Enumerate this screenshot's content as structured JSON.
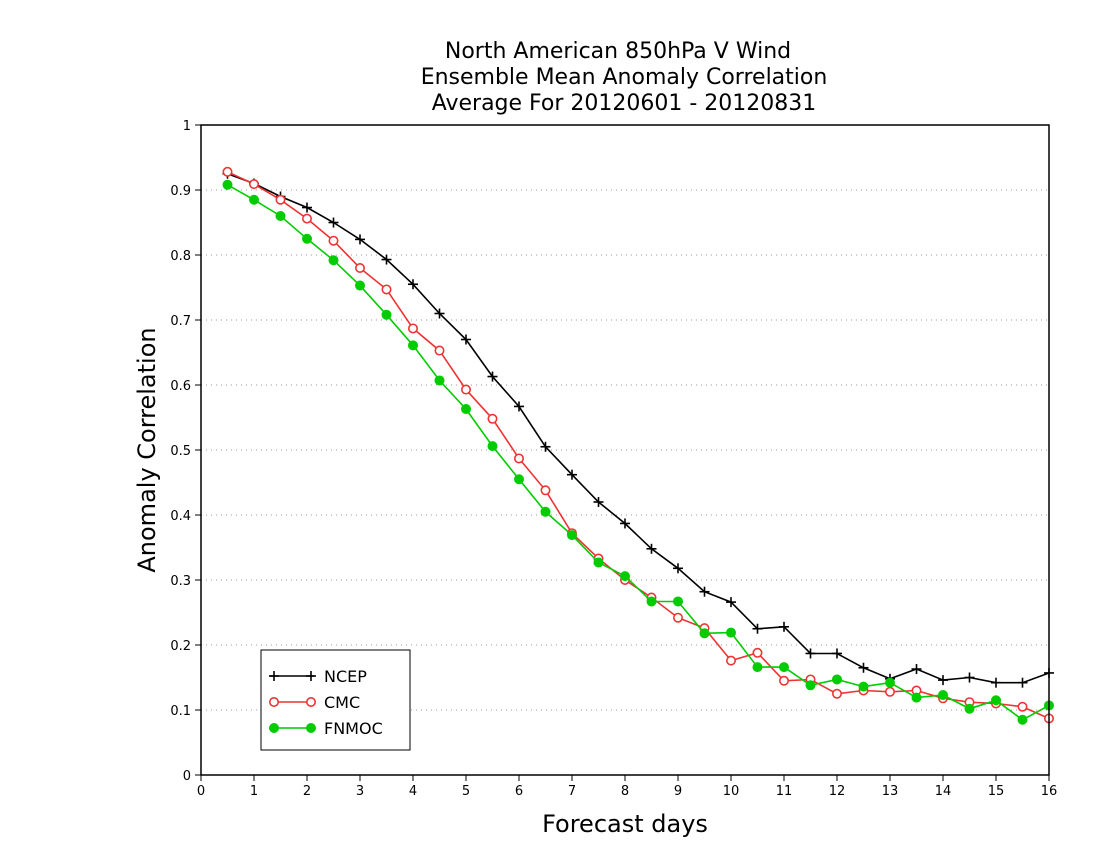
{
  "chart_data": {
    "type": "line",
    "title_lines": [
      "North American 850hPa V Wind",
      "Ensemble Mean Anomaly Correlation",
      "Average For 20120601 - 20120831"
    ],
    "xlabel": "Forecast days",
    "ylabel": "Anomaly Correlation",
    "xlim": [
      0,
      16
    ],
    "ylim": [
      0,
      1
    ],
    "x_ticks": [
      "0",
      "1",
      "2",
      "3",
      "4",
      "5",
      "6",
      "7",
      "8",
      "9",
      "10",
      "11",
      "12",
      "13",
      "14",
      "15",
      "16"
    ],
    "y_ticks": [
      "0",
      "0.1",
      "0.2",
      "0.3",
      "0.4",
      "0.5",
      "0.6",
      "0.7",
      "0.8",
      "0.9",
      "1"
    ],
    "grid": "horizontal-dotted",
    "legend_placement": "bottom-left",
    "x": [
      0.5,
      1,
      1.5,
      2,
      2.5,
      3,
      3.5,
      4,
      4.5,
      5,
      5.5,
      6,
      6.5,
      7,
      7.5,
      8,
      8.5,
      9,
      9.5,
      10,
      10.5,
      11,
      11.5,
      12,
      12.5,
      13,
      13.5,
      14,
      14.5,
      15,
      15.5,
      16
    ],
    "series": [
      {
        "name": "NCEP",
        "color": "#000000",
        "marker": "plus",
        "values": [
          0.925,
          0.91,
          0.89,
          0.873,
          0.85,
          0.824,
          0.793,
          0.755,
          0.71,
          0.67,
          0.613,
          0.567,
          0.505,
          0.462,
          0.42,
          0.387,
          0.348,
          0.318,
          0.282,
          0.266,
          0.225,
          0.228,
          0.187,
          0.187,
          0.165,
          0.148,
          0.163,
          0.146,
          0.15,
          0.142,
          0.142,
          0.157
        ]
      },
      {
        "name": "CMC",
        "color": "#ee3333",
        "marker": "open-circle",
        "values": [
          0.928,
          0.909,
          0.885,
          0.856,
          0.822,
          0.78,
          0.747,
          0.687,
          0.653,
          0.593,
          0.548,
          0.487,
          0.438,
          0.372,
          0.333,
          0.3,
          0.273,
          0.242,
          0.226,
          0.176,
          0.188,
          0.145,
          0.147,
          0.125,
          0.13,
          0.128,
          0.13,
          0.118,
          0.112,
          0.11,
          0.105,
          0.087
        ]
      },
      {
        "name": "FNMOC",
        "color": "#00cc00",
        "marker": "filled-circle",
        "values": [
          0.908,
          0.885,
          0.86,
          0.825,
          0.792,
          0.753,
          0.708,
          0.661,
          0.607,
          0.563,
          0.506,
          0.455,
          0.405,
          0.369,
          0.327,
          0.306,
          0.267,
          0.267,
          0.218,
          0.219,
          0.166,
          0.166,
          0.138,
          0.147,
          0.136,
          0.142,
          0.119,
          0.123,
          0.102,
          0.115,
          0.085,
          0.107
        ]
      }
    ]
  }
}
